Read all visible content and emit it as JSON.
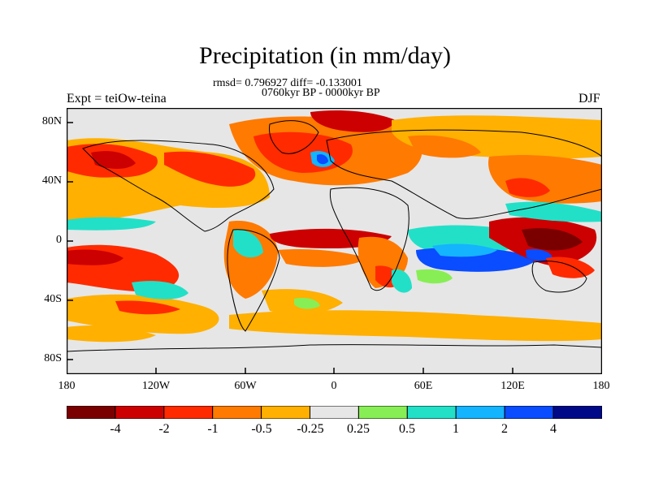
{
  "title": "Precipitation (in mm/day)",
  "stats_line": "rmsd= 0.796927 diff= -0.133001",
  "period_line": "0760kyr BP - 0000kyr BP",
  "left_label": "Expt = teiOw-teina",
  "right_label": "DJF",
  "axes": {
    "lat_ticks": [
      "80N",
      "40N",
      "0",
      "40S",
      "80S"
    ],
    "lon_ticks": [
      "180",
      "120W",
      "60W",
      "0",
      "60E",
      "120E",
      "180"
    ]
  },
  "colorbar": {
    "labels": [
      "-4",
      "-2",
      "-1",
      "-0.5",
      "-0.25",
      "0.25",
      "0.5",
      "1",
      "2",
      "4"
    ],
    "colors": [
      "#7a0000",
      "#cc0000",
      "#ff2a00",
      "#ff7a00",
      "#ffb000",
      "#e6e6e6",
      "#88ee55",
      "#22e0c8",
      "#14b4ff",
      "#0a4cff",
      "#000a88"
    ]
  },
  "map_colors": {
    "neutral": "#e6e6e6",
    "dark_red": "#7a0000",
    "red": "#cc0000",
    "red_orange": "#ff2a00",
    "orange": "#ff7a00",
    "gold": "#ffb000",
    "green": "#88ee55",
    "cyan": "#22e0c8",
    "light_blue": "#14b4ff",
    "blue": "#0a4cff",
    "navy": "#000a88"
  }
}
